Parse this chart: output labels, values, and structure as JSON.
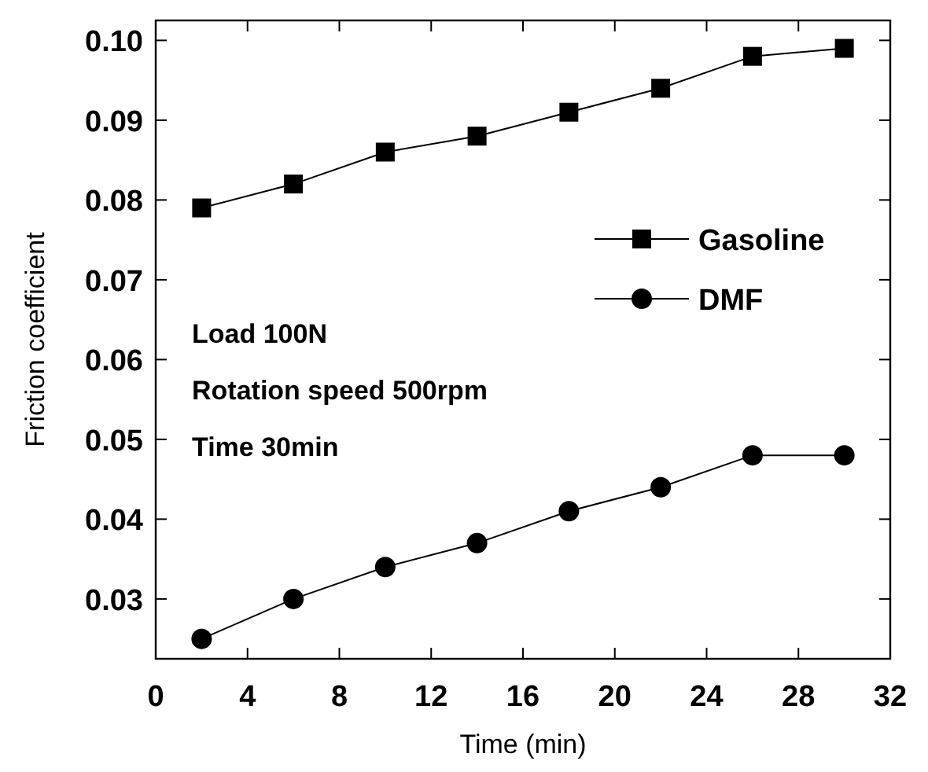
{
  "chart_data": {
    "type": "line",
    "xlabel": "Time (min)",
    "ylabel": "Friction coefficient",
    "x": [
      2,
      6,
      10,
      14,
      18,
      22,
      26,
      30
    ],
    "series": [
      {
        "name": "Gasoline",
        "color": "#000000",
        "marker": "square",
        "values": [
          0.079,
          0.082,
          0.086,
          0.088,
          0.091,
          0.094,
          0.098,
          0.099
        ]
      },
      {
        "name": "DMF",
        "color": "#000000",
        "marker": "circle",
        "values": [
          0.025,
          0.03,
          0.034,
          0.037,
          0.041,
          0.044,
          0.048,
          0.048
        ]
      }
    ],
    "xlim": [
      0,
      32
    ],
    "xticks": [
      0,
      4,
      8,
      12,
      16,
      20,
      24,
      28,
      32
    ],
    "ylim": [
      0.0225,
      0.1025
    ],
    "yticks": [
      {
        "value": 0.03,
        "label": "0.03"
      },
      {
        "value": 0.04,
        "label": "0.04"
      },
      {
        "value": 0.05,
        "label": "0.05"
      },
      {
        "value": 0.06,
        "label": "0.06"
      },
      {
        "value": 0.07,
        "label": "0.07"
      },
      {
        "value": 0.08,
        "label": "0.08"
      },
      {
        "value": 0.09,
        "label": "0.09"
      },
      {
        "value": 0.1,
        "label": "0.10"
      }
    ],
    "annotations": [
      "Load 100N",
      "Rotation speed 500rpm",
      "Time 30min"
    ],
    "legend": "right",
    "grid": false,
    "line_style": "solid"
  }
}
